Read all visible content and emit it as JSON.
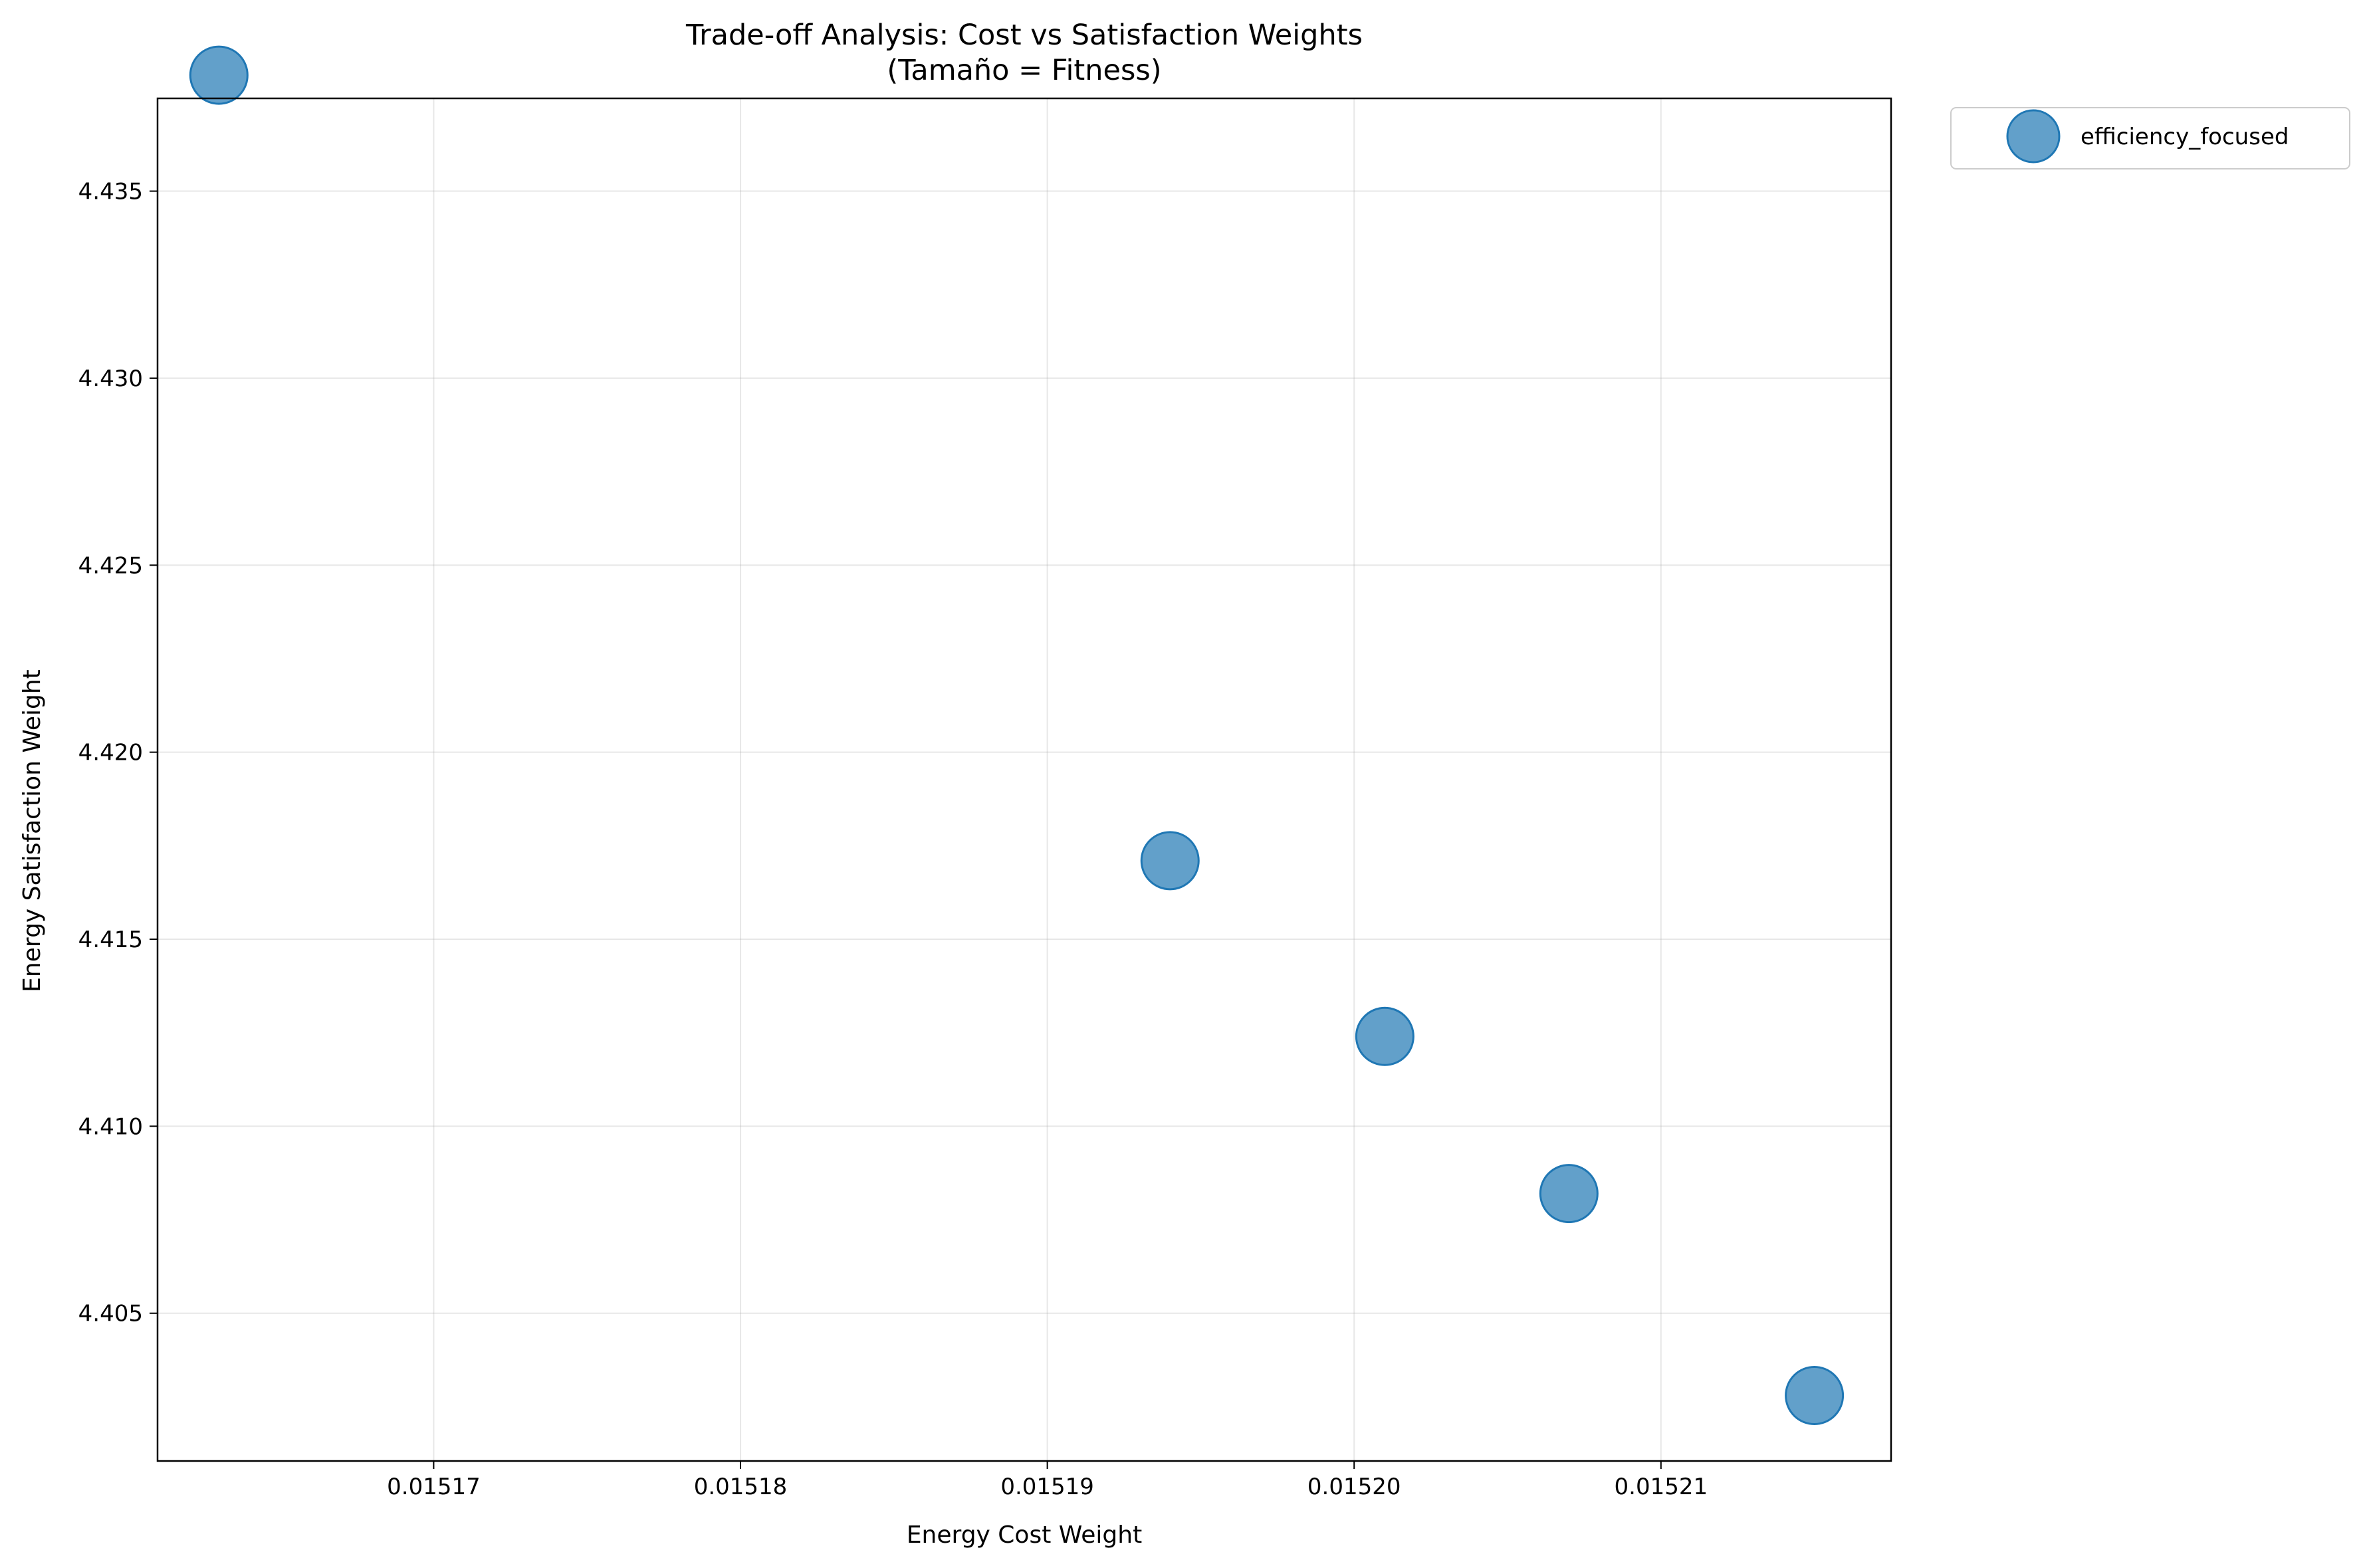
{
  "chart_data": {
    "type": "scatter",
    "title": "Trade-off Analysis: Cost vs Satisfaction Weights",
    "subtitle": "(Tamaño = Fitness)",
    "xlabel": "Energy Cost Weight",
    "ylabel": "Energy Satisfaction Weight",
    "xlim": [
      0.015161,
      0.0152175
    ],
    "ylim": [
      4.40105,
      4.43748
    ],
    "xticks": [
      0.01517,
      0.01518,
      0.01519,
      0.0152,
      0.01521
    ],
    "xtick_labels": [
      "0.01517",
      "0.01518",
      "0.01519",
      "0.01520",
      "0.01521"
    ],
    "yticks": [
      4.405,
      4.41,
      4.415,
      4.42,
      4.425,
      4.43,
      4.435
    ],
    "ytick_labels": [
      "4.405",
      "4.410",
      "4.415",
      "4.420",
      "4.425",
      "4.430",
      "4.435"
    ],
    "grid": true,
    "legend_position": "outside-top-right",
    "series": [
      {
        "name": "efficiency_focused",
        "color": "#1f77b4",
        "alpha": 0.7,
        "points": [
          {
            "x": 0.015163,
            "y": 4.4381
          },
          {
            "x": 0.015194,
            "y": 4.4171
          },
          {
            "x": 0.015201,
            "y": 4.4124
          },
          {
            "x": 0.015207,
            "y": 4.4082
          },
          {
            "x": 0.015215,
            "y": 4.4028
          }
        ]
      }
    ]
  }
}
